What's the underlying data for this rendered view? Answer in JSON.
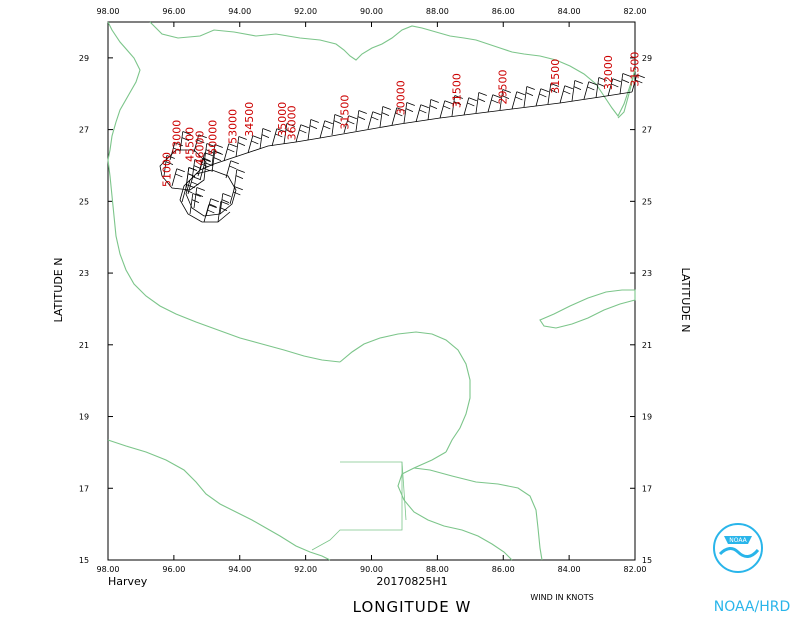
{
  "map": {
    "lon_ticks": [
      "98.00",
      "96.00",
      "94.00",
      "92.00",
      "90.00",
      "88.00",
      "86.00",
      "84.00",
      "82.00"
    ],
    "lat_ticks": [
      "29",
      "27",
      "25",
      "23",
      "21",
      "19",
      "17",
      "15"
    ],
    "lat_axis_label": "LATITUDE   N",
    "lon_axis_label": "LONGITUDE   W",
    "storm_name": "Harvey",
    "mission_id": "20170825H1",
    "wind_units_note": "WIND IN KNOTS",
    "org_label": "NOAA/HRD",
    "logo_text": "NOAA",
    "coastline_color": "#7cc58a",
    "altitude_label_color": "#cc0000",
    "lon_range": [
      -98,
      -82
    ],
    "lat_range": [
      15,
      30
    ]
  },
  "flight_altitude_labels": [
    {
      "text": "53000",
      "lon": -95.8,
      "lat": 26.3
    },
    {
      "text": "51000",
      "lon": -96.1,
      "lat": 25.4
    },
    {
      "text": "45500",
      "lon": -95.4,
      "lat": 26.1
    },
    {
      "text": "46000",
      "lon": -95.1,
      "lat": 26.0
    },
    {
      "text": "50000",
      "lon": -94.7,
      "lat": 26.3
    },
    {
      "text": "53000",
      "lon": -94.1,
      "lat": 26.6
    },
    {
      "text": "34500",
      "lon": -93.6,
      "lat": 26.8
    },
    {
      "text": "35000",
      "lon": -92.6,
      "lat": 26.8
    },
    {
      "text": "36000",
      "lon": -92.3,
      "lat": 26.7
    },
    {
      "text": "31500",
      "lon": -90.7,
      "lat": 27.0
    },
    {
      "text": "30000",
      "lon": -89.0,
      "lat": 27.4
    },
    {
      "text": "31500",
      "lon": -87.3,
      "lat": 27.6
    },
    {
      "text": "29500",
      "lon": -85.9,
      "lat": 27.7
    },
    {
      "text": "31500",
      "lon": -84.3,
      "lat": 28.0
    },
    {
      "text": "32000",
      "lon": -82.7,
      "lat": 28.1
    },
    {
      "text": "31500",
      "lon": -81.9,
      "lat": 28.2
    }
  ]
}
